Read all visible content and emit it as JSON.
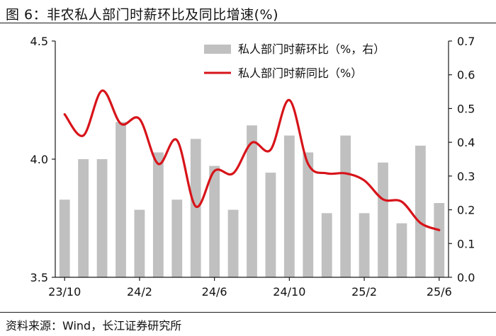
{
  "title": "图 6：非农私人部门时薪环比及同比增速(%)",
  "source": "资料来源：Wind，长江证券研究所",
  "colors": {
    "bar": "#c0c0c0",
    "line": "#d7141a",
    "axis": "#1a1a1a"
  },
  "chart_data": {
    "type": "bar+line",
    "legend_position": "top-right",
    "grid": false,
    "left_axis": {
      "range": [
        3.5,
        4.5
      ],
      "ticks": [
        "3.5",
        "4.0",
        "4.5"
      ],
      "series": "私人部门时薪同比（%）"
    },
    "right_axis": {
      "range": [
        0.0,
        0.7
      ],
      "ticks": [
        "0.0",
        "0.1",
        "0.2",
        "0.3",
        "0.4",
        "0.5",
        "0.6",
        "0.7"
      ],
      "series": "私人部门时薪环比（%，右）"
    },
    "x_tick_labels": [
      "23/10",
      "24/2",
      "24/6",
      "24/10",
      "25/2",
      "25/6"
    ],
    "x_tick_indices": [
      0,
      4,
      8,
      12,
      16,
      20
    ],
    "categories": [
      "2023-10",
      "2023-11",
      "2023-12",
      "2024-01",
      "2024-02",
      "2024-03",
      "2024-04",
      "2024-05",
      "2024-06",
      "2024-07",
      "2024-08",
      "2024-09",
      "2024-10",
      "2024-11",
      "2024-12",
      "2025-01",
      "2025-02",
      "2025-03",
      "2025-04",
      "2025-05",
      "2025-06"
    ],
    "series": [
      {
        "name": "私人部门时薪环比（%，右）",
        "type": "bar",
        "axis": "right",
        "values": [
          0.23,
          0.35,
          0.35,
          0.46,
          0.2,
          0.37,
          0.23,
          0.41,
          0.33,
          0.2,
          0.45,
          0.31,
          0.42,
          0.37,
          0.19,
          0.42,
          0.19,
          0.34,
          0.16,
          0.39,
          0.22
        ]
      },
      {
        "name": "私人部门时薪同比（%）",
        "type": "line",
        "axis": "left",
        "values": [
          4.19,
          4.1,
          4.29,
          4.15,
          4.17,
          3.98,
          4.08,
          3.8,
          3.95,
          3.94,
          4.07,
          4.04,
          4.25,
          3.98,
          3.94,
          3.94,
          3.91,
          3.83,
          3.82,
          3.73,
          3.7
        ]
      }
    ]
  }
}
